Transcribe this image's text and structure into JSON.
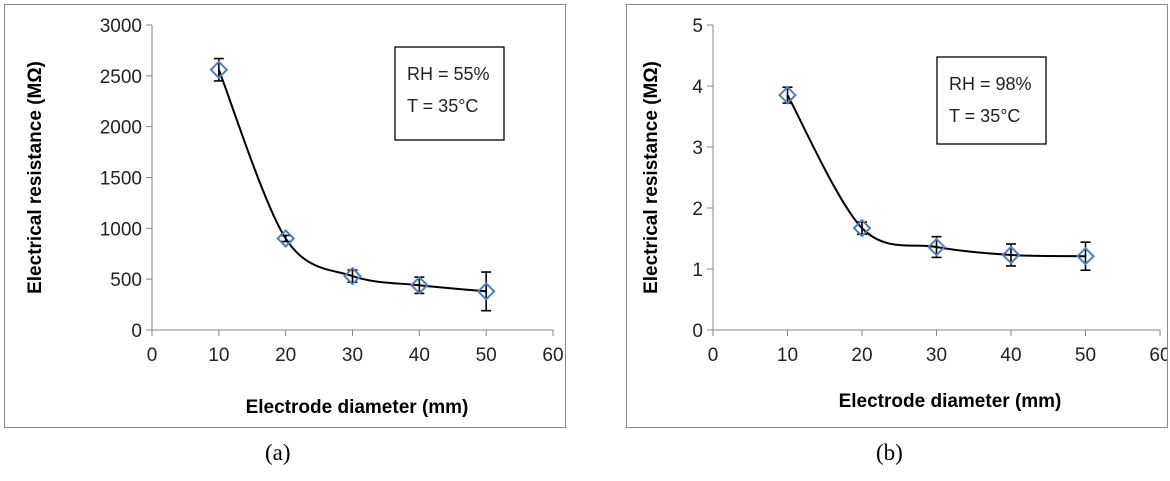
{
  "chart_data": [
    {
      "type": "scatter",
      "panel_label": "(a)",
      "xlabel": "Electrode diameter (mm)",
      "ylabel": "Electrical resistance (MΩ)",
      "xlim": [
        0,
        60
      ],
      "ylim": [
        0,
        3000
      ],
      "xticks": [
        "0",
        "10",
        "20",
        "30",
        "40",
        "50",
        "60"
      ],
      "yticks": [
        "0",
        "500",
        "1000",
        "1500",
        "2000",
        "2500",
        "3000"
      ],
      "x": [
        10,
        20,
        30,
        40,
        50
      ],
      "y": [
        2560,
        900,
        530,
        440,
        380
      ],
      "error": [
        110,
        30,
        60,
        80,
        190
      ],
      "annotation": [
        "RH = 55%",
        "T = 35°C"
      ],
      "marker_color": "#4f81bd",
      "line_color": "#000000",
      "grid": false
    },
    {
      "type": "scatter",
      "panel_label": "(b)",
      "xlabel": "Electrode diameter (mm)",
      "ylabel": "Electrical resistance (MΩ)",
      "xlim": [
        0,
        60
      ],
      "ylim": [
        0,
        5
      ],
      "xticks": [
        "0",
        "10",
        "20",
        "30",
        "40",
        "50",
        "60"
      ],
      "yticks": [
        "0",
        "1",
        "2",
        "3",
        "4",
        "5"
      ],
      "x": [
        10,
        20,
        30,
        40,
        50
      ],
      "y": [
        3.85,
        1.67,
        1.36,
        1.23,
        1.21
      ],
      "error": [
        0.13,
        0.1,
        0.17,
        0.18,
        0.23
      ],
      "annotation": [
        "RH = 98%",
        "T = 35°C"
      ],
      "marker_color": "#4f81bd",
      "line_color": "#000000",
      "grid": false
    }
  ]
}
